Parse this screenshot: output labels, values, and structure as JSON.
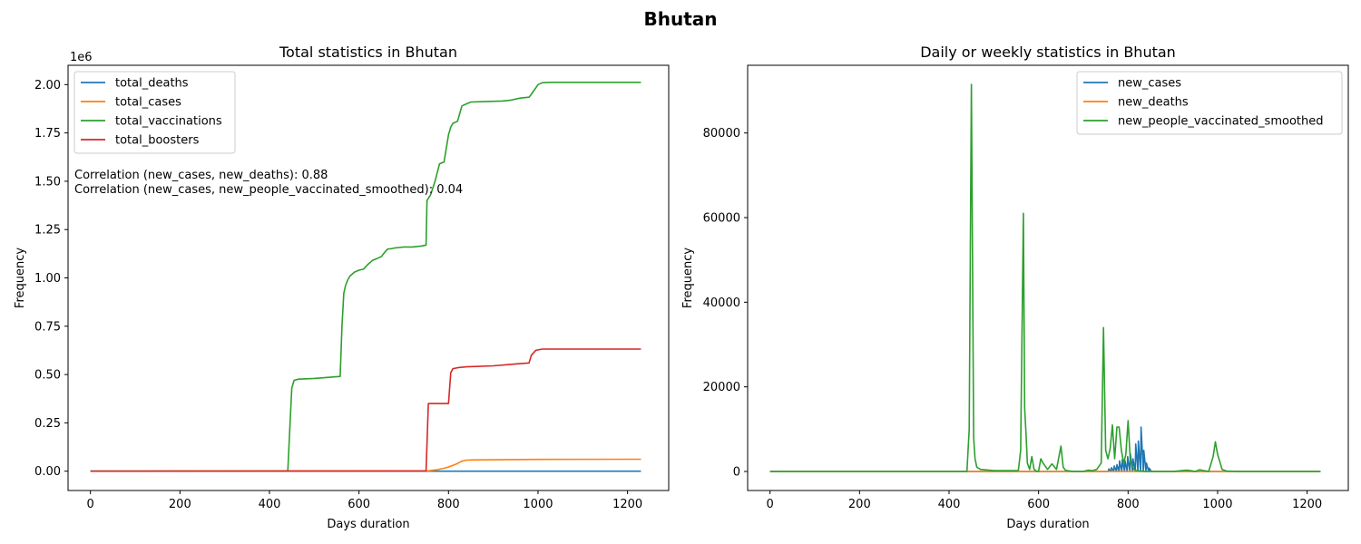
{
  "figure": {
    "suptitle": "Bhutan"
  },
  "chart_data": [
    {
      "type": "line",
      "title": "Total statistics in Bhutan",
      "xlabel": "Days duration",
      "ylabel": "Frequency",
      "y_offset_label": "1e6",
      "xlim": [
        -50,
        1292
      ],
      "ylim": [
        -0.1,
        2.1
      ],
      "xticks": [
        0,
        200,
        400,
        600,
        800,
        1000,
        1200
      ],
      "yticks": [
        0.0,
        0.25,
        0.5,
        0.75,
        1.0,
        1.25,
        1.5,
        1.75,
        2.0
      ],
      "ytick_labels": [
        "0.00",
        "0.25",
        "0.50",
        "0.75",
        "1.00",
        "1.25",
        "1.50",
        "1.75",
        "2.00"
      ],
      "grid": false,
      "legend_position": "upper left",
      "annotations": [
        "Correlation (new_cases, new_deaths): 0.88",
        "Correlation (new_cases, new_people_vaccinated_smoothed): 0.04"
      ],
      "series": [
        {
          "name": "total_deaths",
          "color": "#1f77b4",
          "x": [
            0,
            1230
          ],
          "y": [
            0.0,
            2e-05
          ]
        },
        {
          "name": "total_cases",
          "color": "#ff7f0e",
          "x": [
            0,
            755,
            775,
            790,
            800,
            810,
            820,
            830,
            840,
            850,
            900,
            1000,
            1230
          ],
          "y": [
            0.0,
            0.002,
            0.008,
            0.015,
            0.022,
            0.03,
            0.04,
            0.052,
            0.057,
            0.058,
            0.059,
            0.061,
            0.062
          ]
        },
        {
          "name": "total_vaccinations",
          "color": "#2ca02c",
          "x": [
            0,
            441,
            445,
            450,
            455,
            465,
            500,
            558,
            562,
            566,
            570,
            575,
            580,
            590,
            600,
            610,
            620,
            630,
            640,
            650,
            660,
            665,
            670,
            680,
            700,
            720,
            740,
            750,
            752,
            760,
            770,
            780,
            790,
            800,
            805,
            810,
            820,
            830,
            840,
            850,
            880,
            920,
            940,
            960,
            980,
            985,
            1000,
            1010,
            1030,
            1230
          ],
          "y": [
            0.0,
            0.0,
            0.2,
            0.43,
            0.47,
            0.476,
            0.48,
            0.49,
            0.75,
            0.92,
            0.96,
            0.99,
            1.01,
            1.03,
            1.04,
            1.045,
            1.07,
            1.09,
            1.1,
            1.11,
            1.14,
            1.15,
            1.15,
            1.155,
            1.16,
            1.16,
            1.165,
            1.17,
            1.4,
            1.43,
            1.5,
            1.59,
            1.6,
            1.74,
            1.78,
            1.8,
            1.81,
            1.89,
            1.9,
            1.91,
            1.912,
            1.915,
            1.92,
            1.93,
            1.935,
            1.95,
            2.0,
            2.01,
            2.012,
            2.012
          ]
        },
        {
          "name": "total_boosters",
          "color": "#d62728",
          "x": [
            0,
            750,
            755,
            800,
            805,
            810,
            820,
            840,
            900,
            950,
            980,
            985,
            995,
            1010,
            1230
          ],
          "y": [
            0.0,
            0.002,
            0.35,
            0.35,
            0.51,
            0.53,
            0.535,
            0.54,
            0.545,
            0.555,
            0.56,
            0.6,
            0.625,
            0.632,
            0.632
          ]
        }
      ]
    },
    {
      "type": "line",
      "title": "Daily or weekly statistics in Bhutan",
      "xlabel": "Days duration",
      "ylabel": "Frequency",
      "xlim": [
        -50,
        1292
      ],
      "ylim": [
        -4500,
        96000
      ],
      "xticks": [
        0,
        200,
        400,
        600,
        800,
        1000,
        1200
      ],
      "yticks": [
        0,
        20000,
        40000,
        60000,
        80000
      ],
      "ytick_labels": [
        "0",
        "20000",
        "40000",
        "60000",
        "80000"
      ],
      "grid": false,
      "legend_position": "upper right",
      "series": [
        {
          "name": "new_cases",
          "color": "#1f77b4",
          "x": [
            0,
            750,
            756,
            757,
            762,
            763,
            768,
            769,
            774,
            775,
            780,
            781,
            786,
            787,
            792,
            793,
            798,
            799,
            804,
            805,
            810,
            811,
            816,
            817,
            822,
            823,
            828,
            829,
            834,
            835,
            840,
            841,
            846,
            847,
            852,
            853,
            1230
          ],
          "y": [
            0,
            0,
            0,
            600,
            0,
            900,
            0,
            1300,
            0,
            1600,
            0,
            2500,
            0,
            2800,
            0,
            2600,
            0,
            3500,
            0,
            4200,
            0,
            3000,
            0,
            6500,
            0,
            7200,
            0,
            10500,
            0,
            5000,
            0,
            2000,
            0,
            800,
            0,
            0,
            0
          ]
        },
        {
          "name": "new_deaths",
          "color": "#ff7f0e",
          "x": [
            0,
            1230
          ],
          "y": [
            0,
            0
          ]
        },
        {
          "name": "new_people_vaccinated_smoothed",
          "color": "#2ca02c",
          "x": [
            0,
            440,
            445,
            450,
            455,
            458,
            462,
            470,
            500,
            550,
            555,
            560,
            566,
            569,
            572,
            575,
            580,
            585,
            590,
            595,
            600,
            605,
            610,
            620,
            630,
            640,
            650,
            655,
            660,
            665,
            670,
            680,
            700,
            710,
            720,
            730,
            740,
            745,
            750,
            755,
            760,
            765,
            770,
            775,
            780,
            785,
            790,
            795,
            800,
            805,
            810,
            815,
            820,
            825,
            830,
            835,
            840,
            845,
            850,
            870,
            900,
            920,
            930,
            940,
            950,
            960,
            970,
            980,
            990,
            995,
            1000,
            1010,
            1020,
            1050,
            1100,
            1230
          ],
          "y": [
            0,
            0,
            10000,
            91500,
            8000,
            3000,
            1000,
            500,
            200,
            200,
            300,
            5000,
            61000,
            15000,
            9000,
            2000,
            500,
            3500,
            500,
            100,
            0,
            3000,
            2000,
            500,
            1800,
            500,
            6000,
            1000,
            300,
            200,
            100,
            0,
            0,
            300,
            200,
            500,
            2000,
            34000,
            5000,
            3000,
            5500,
            11000,
            3000,
            10500,
            10500,
            5000,
            2000,
            4000,
            12000,
            2500,
            1000,
            300,
            200,
            100,
            100,
            0,
            0,
            0,
            0,
            0,
            0,
            200,
            300,
            200,
            0,
            400,
            200,
            0,
            3500,
            7000,
            4000,
            500,
            100,
            0,
            0,
            0
          ]
        }
      ]
    }
  ]
}
